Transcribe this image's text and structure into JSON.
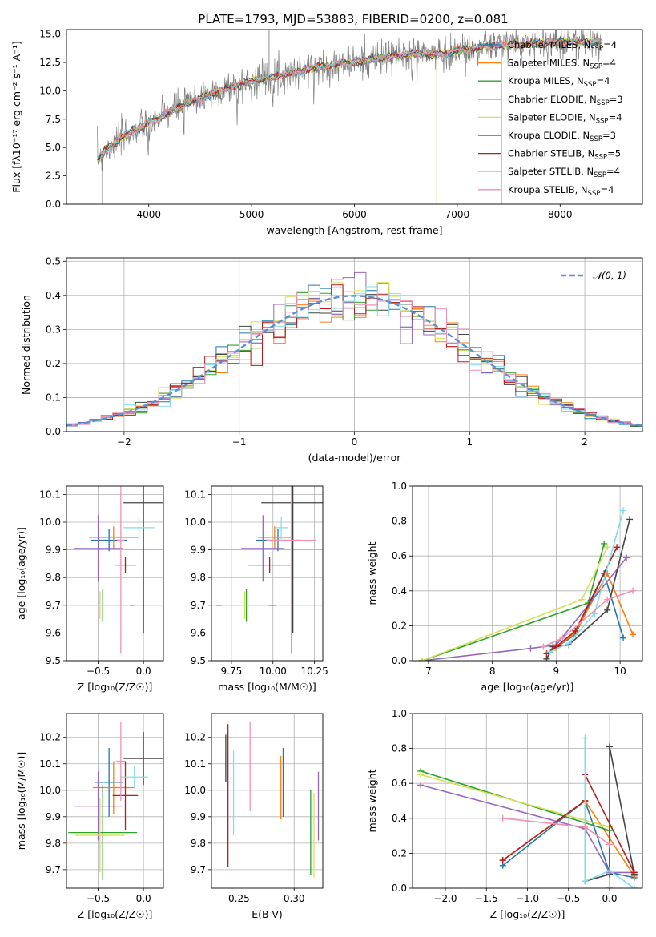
{
  "title": "PLATE=1793, MJD=53883, FIBERID=0200, z=0.081",
  "colors": [
    "#1f77b4",
    "#ff7f0e",
    "#2ca02c",
    "#9467bd",
    "#d4e157",
    "#444444",
    "#b71c1c",
    "#80deea",
    "#f48fb1"
  ],
  "labels": {
    "spec_x": "wavelength [Angstrom, rest frame]",
    "spec_y": "Flux [fλ10⁻¹⁷ erg cm⁻² s⁻¹ A⁻¹]",
    "hist_x": "(data-model)/error",
    "hist_y": "Normed distribution",
    "normal_legend": "𝒩(0, 1)",
    "age_y": "age  [log₁₀(age/yr)]",
    "z_x": "Z [log₁₀(Z/Z☉)]",
    "mass_x": "mass [log₁₀(M/M☉)]",
    "mass_y": "mass [log₁₀(M/M☉)]",
    "ebv_x": "E(B-V)",
    "mw_y": "mass weight",
    "age_x": "age  [log₁₀(age/yr)]"
  },
  "chart_data": [
    {
      "id": "spectrum",
      "type": "line",
      "xlim": [
        3200,
        8800
      ],
      "ylim": [
        0,
        15.4
      ],
      "xticks": [
        4000,
        5000,
        6000,
        7000,
        8000
      ],
      "yticks": [
        0.0,
        2.5,
        5.0,
        7.5,
        10.0,
        12.5,
        15.0
      ],
      "grid": false,
      "legend": "upper-right",
      "continuum": {
        "x": [
          3500,
          3600,
          3700,
          3800,
          3900,
          4000,
          4100,
          4200,
          4400,
          4600,
          4800,
          5000,
          5200,
          5400,
          5600,
          5800,
          6000,
          6200,
          6400,
          6600,
          6800,
          7000,
          7200,
          7400,
          7600,
          7800,
          8000,
          8200,
          8400
        ],
        "y": [
          4.0,
          5.0,
          5.6,
          6.3,
          6.6,
          7.2,
          7.6,
          8.2,
          9.0,
          9.7,
          10.3,
          10.9,
          11.2,
          11.6,
          12.0,
          12.3,
          12.5,
          12.8,
          13.1,
          13.3,
          13.2,
          13.5,
          13.8,
          14.0,
          14.1,
          14.2,
          14.3,
          14.3,
          14.3
        ]
      },
      "series": [
        {
          "name": "Chabrier MILES, N",
          "sub": "SSP",
          "suffix": "=4"
        },
        {
          "name": "Salpeter MILES, N",
          "sub": "SSP",
          "suffix": "=4"
        },
        {
          "name": "Kroupa MILES, N",
          "sub": "SSP",
          "suffix": "=4"
        },
        {
          "name": "Chabrier ELODIE, N",
          "sub": "SSP",
          "suffix": "=3"
        },
        {
          "name": "Salpeter ELODIE, N",
          "sub": "SSP",
          "suffix": "=4"
        },
        {
          "name": "Kroupa ELODIE, N",
          "sub": "SSP",
          "suffix": "=3"
        },
        {
          "name": "Chabrier STELIB, N",
          "sub": "SSP",
          "suffix": "=5"
        },
        {
          "name": "Salpeter STELIB, N",
          "sub": "SSP",
          "suffix": "=4"
        },
        {
          "name": "Kroupa STELIB, N",
          "sub": "SSP",
          "suffix": "=4"
        }
      ]
    },
    {
      "id": "residuals",
      "type": "line",
      "xlim": [
        -2.5,
        2.5
      ],
      "ylim": [
        0,
        0.51
      ],
      "xticks": [
        -2,
        -1,
        0,
        1,
        2
      ],
      "yticks": [
        0.0,
        0.1,
        0.2,
        0.3,
        0.4,
        0.5
      ],
      "grid": true,
      "legend": "upper-right",
      "bin_width": 0.1
    },
    {
      "id": "age_vs_z",
      "type": "scatter",
      "xlim": [
        -0.85,
        0.22
      ],
      "ylim": [
        9.5,
        10.13
      ],
      "xticks": [
        -0.5,
        0.0
      ],
      "yticks": [
        9.5,
        9.6,
        9.7,
        9.8,
        9.9,
        10.0,
        10.1
      ],
      "grid": true,
      "points": [
        {
          "c": 0,
          "x": -0.38,
          "y": 9.935,
          "xe": 0.2,
          "ye": 0.04
        },
        {
          "c": 1,
          "x": -0.33,
          "y": 9.945,
          "xe": 0.27,
          "ye": 0.04
        },
        {
          "c": 2,
          "x": -0.45,
          "y": 9.7,
          "xe": 0.35,
          "ye": 0.06
        },
        {
          "c": 3,
          "x": -0.5,
          "y": 9.905,
          "xe": 0.27,
          "ye": 0.12
        },
        {
          "c": 4,
          "x": -0.48,
          "y": 9.7,
          "xe": 0.33,
          "ye": 0.05
        },
        {
          "c": 5,
          "x": 0.0,
          "y": 10.07,
          "xe": 0.22,
          "ye": 0.47
        },
        {
          "c": 6,
          "x": -0.2,
          "y": 9.845,
          "xe": 0.12,
          "ye": 0.03
        },
        {
          "c": 7,
          "x": -0.05,
          "y": 9.98,
          "xe": 0.17,
          "ye": 0.04
        },
        {
          "c": 8,
          "x": -0.25,
          "y": 9.935,
          "xe": 0.04,
          "ye": 0.41
        }
      ]
    },
    {
      "id": "age_vs_mass",
      "type": "scatter",
      "xlim": [
        9.63,
        10.3
      ],
      "ylim": [
        9.5,
        10.13
      ],
      "xticks": [
        9.75,
        10.0,
        10.25
      ],
      "yticks": [
        9.5,
        9.6,
        9.7,
        9.8,
        9.9,
        10.0,
        10.1
      ],
      "grid": true,
      "points": [
        {
          "c": 0,
          "x": 10.03,
          "y": 9.935,
          "xe": 0.13,
          "ye": 0.04
        },
        {
          "c": 1,
          "x": 10.01,
          "y": 9.945,
          "xe": 0.1,
          "ye": 0.04
        },
        {
          "c": 2,
          "x": 9.84,
          "y": 9.7,
          "xe": 0.18,
          "ye": 0.06
        },
        {
          "c": 3,
          "x": 9.94,
          "y": 9.905,
          "xe": 0.13,
          "ye": 0.12
        },
        {
          "c": 4,
          "x": 9.83,
          "y": 9.7,
          "xe": 0.14,
          "ye": 0.05
        },
        {
          "c": 5,
          "x": 10.12,
          "y": 10.07,
          "xe": 0.19,
          "ye": 0.47
        },
        {
          "c": 6,
          "x": 9.98,
          "y": 9.845,
          "xe": 0.13,
          "ye": 0.03
        },
        {
          "c": 7,
          "x": 10.05,
          "y": 9.98,
          "xe": 0.04,
          "ye": 0.04
        },
        {
          "c": 8,
          "x": 10.11,
          "y": 9.935,
          "xe": 0.15,
          "ye": 0.41
        }
      ]
    },
    {
      "id": "weight_vs_age",
      "type": "line",
      "xlim": [
        6.75,
        10.35
      ],
      "ylim": [
        0,
        1.0
      ],
      "xticks": [
        7,
        8,
        9,
        10
      ],
      "yticks": [
        0.0,
        0.2,
        0.4,
        0.6,
        0.8,
        1.0
      ],
      "grid": true,
      "series": [
        {
          "c": 0,
          "x": [
            8.9,
            9.3,
            9.75,
            10.05
          ],
          "y": [
            0.05,
            0.15,
            0.5,
            0.13
          ]
        },
        {
          "c": 1,
          "x": [
            8.95,
            9.3,
            9.8,
            10.2
          ],
          "y": [
            0.06,
            0.16,
            0.5,
            0.15
          ]
        },
        {
          "c": 2,
          "x": [
            6.9,
            9.5,
            9.75
          ],
          "y": [
            0.0,
            0.33,
            0.67
          ]
        },
        {
          "c": 3,
          "x": [
            6.9,
            8.6,
            9.0,
            10.1
          ],
          "y": [
            0.0,
            0.07,
            0.09,
            0.59
          ]
        },
        {
          "c": 4,
          "x": [
            6.9,
            9.4,
            9.8
          ],
          "y": [
            0.0,
            0.35,
            0.65
          ]
        },
        {
          "c": 5,
          "x": [
            8.85,
            8.95,
            9.2,
            9.8,
            10.15
          ],
          "y": [
            0.01,
            0.08,
            0.09,
            0.29,
            0.81
          ]
        },
        {
          "c": 6,
          "x": [
            8.85,
            9.0,
            9.3,
            9.95
          ],
          "y": [
            0.04,
            0.08,
            0.17,
            0.65
          ]
        },
        {
          "c": 7,
          "x": [
            8.9,
            9.2,
            9.6,
            10.05
          ],
          "y": [
            0.05,
            0.1,
            0.27,
            0.86
          ]
        },
        {
          "c": 8,
          "x": [
            8.8,
            9.1,
            9.8,
            10.2
          ],
          "y": [
            0.08,
            0.13,
            0.35,
            0.4
          ]
        }
      ]
    },
    {
      "id": "mass_vs_z",
      "type": "scatter",
      "xlim": [
        -0.85,
        0.22
      ],
      "ylim": [
        9.63,
        10.29
      ],
      "xticks": [
        -0.5,
        0.0
      ],
      "yticks": [
        9.7,
        9.8,
        9.9,
        10.0,
        10.1,
        10.2
      ],
      "grid": true,
      "points": [
        {
          "c": 0,
          "x": -0.38,
          "y": 10.03,
          "xe": 0.16,
          "ye": 0.13
        },
        {
          "c": 1,
          "x": -0.33,
          "y": 10.01,
          "xe": 0.23,
          "ye": 0.1
        },
        {
          "c": 2,
          "x": -0.45,
          "y": 9.84,
          "xe": 0.38,
          "ye": 0.18
        },
        {
          "c": 3,
          "x": -0.5,
          "y": 9.94,
          "xe": 0.27,
          "ye": 0.13
        },
        {
          "c": 4,
          "x": -0.48,
          "y": 9.83,
          "xe": 0.27,
          "ye": 0.14
        },
        {
          "c": 5,
          "x": 0.0,
          "y": 10.12,
          "xe": 0.22,
          "ye": 0.1
        },
        {
          "c": 6,
          "x": -0.2,
          "y": 9.98,
          "xe": 0.14,
          "ye": 0.13
        },
        {
          "c": 7,
          "x": -0.1,
          "y": 10.05,
          "xe": 0.15,
          "ye": 0.04
        },
        {
          "c": 8,
          "x": -0.25,
          "y": 10.11,
          "xe": 0.05,
          "ye": 0.15
        }
      ]
    },
    {
      "id": "mass_vs_ebv",
      "type": "scatter",
      "xlim": [
        0.225,
        0.326
      ],
      "ylim": [
        9.63,
        10.29
      ],
      "xticks": [
        0.25,
        0.3
      ],
      "yticks": [
        9.7,
        9.8,
        9.9,
        10.0,
        10.1,
        10.2
      ],
      "grid": true,
      "points": [
        {
          "c": 0,
          "x": 0.29,
          "y": 10.03,
          "ye": 0.13
        },
        {
          "c": 1,
          "x": 0.288,
          "y": 10.01,
          "ye": 0.12
        },
        {
          "c": 2,
          "x": 0.315,
          "y": 9.84,
          "ye": 0.16
        },
        {
          "c": 3,
          "x": 0.322,
          "y": 9.94,
          "ye": 0.13
        },
        {
          "c": 4,
          "x": 0.318,
          "y": 9.83,
          "ye": 0.16
        },
        {
          "c": 5,
          "x": 0.238,
          "y": 10.12,
          "ye": 0.09
        },
        {
          "c": 6,
          "x": 0.24,
          "y": 9.98,
          "ye": 0.27
        },
        {
          "c": 7,
          "x": 0.245,
          "y": 9.99,
          "ye": 0.16
        },
        {
          "c": 8,
          "x": 0.26,
          "y": 10.09,
          "ye": 0.17
        }
      ]
    },
    {
      "id": "weight_vs_z",
      "type": "line",
      "xlim": [
        -2.4,
        0.4
      ],
      "ylim": [
        0,
        1.0
      ],
      "xticks": [
        -2.0,
        -1.5,
        -1.0,
        -0.5,
        0.0
      ],
      "yticks": [
        0.0,
        0.2,
        0.4,
        0.6,
        0.8,
        1.0
      ],
      "grid": true,
      "series": [
        {
          "c": 0,
          "x": [
            -1.3,
            -0.3,
            0.0,
            0.3
          ],
          "y": [
            0.13,
            0.5,
            0.09,
            0.06
          ]
        },
        {
          "c": 1,
          "x": [
            -1.3,
            -0.3,
            0.3
          ],
          "y": [
            0.16,
            0.5,
            0.07
          ]
        },
        {
          "c": 2,
          "x": [
            -2.3,
            0.0,
            0.0
          ],
          "y": [
            0.67,
            0.33,
            0.0
          ]
        },
        {
          "c": 3,
          "x": [
            -2.3,
            -0.3,
            0.0,
            0.3
          ],
          "y": [
            0.59,
            0.34,
            0.09,
            0.09
          ]
        },
        {
          "c": 4,
          "x": [
            -2.3,
            0.0,
            0.0
          ],
          "y": [
            0.65,
            0.35,
            0.0
          ]
        },
        {
          "c": 5,
          "x": [
            -0.3,
            0.0,
            0.0,
            0.3
          ],
          "y": [
            0.04,
            0.08,
            0.81,
            0.08
          ]
        },
        {
          "c": 6,
          "x": [
            -1.3,
            -0.3,
            -0.3,
            0.3
          ],
          "y": [
            0.16,
            0.5,
            0.65,
            0.09
          ]
        },
        {
          "c": 7,
          "x": [
            -0.3,
            -0.3,
            0.0,
            0.3
          ],
          "y": [
            0.86,
            0.04,
            0.1,
            0.0
          ]
        },
        {
          "c": 8,
          "x": [
            -1.3,
            -0.3,
            0.0
          ],
          "y": [
            0.4,
            0.35,
            0.25
          ]
        }
      ]
    }
  ]
}
